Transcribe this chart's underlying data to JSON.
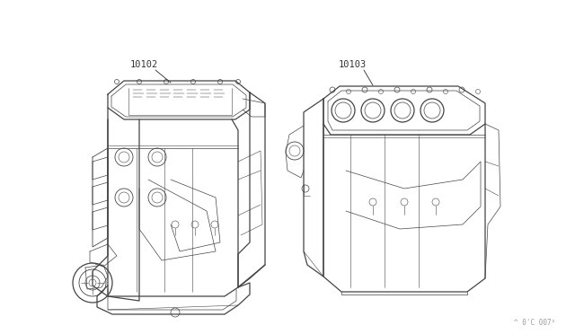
{
  "background_color": "#ffffff",
  "label1": "10102",
  "label2": "10103",
  "watermark": "^ 0'C 007²",
  "line_color": "#444444",
  "label_color": "#333333",
  "watermark_color": "#999999",
  "fig_width": 6.4,
  "fig_height": 3.72,
  "dpi": 100
}
